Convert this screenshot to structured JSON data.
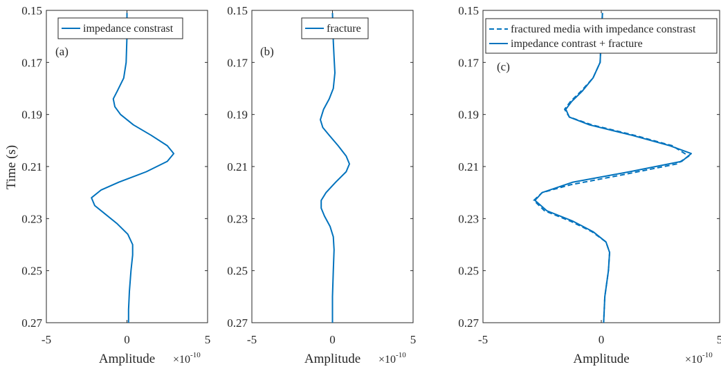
{
  "figure": {
    "ylabel": "Time (s)",
    "xlabel": "Amplitude",
    "line_color": "#0072BD",
    "axis_color": "#262626"
  },
  "chart_data": [
    {
      "type": "line",
      "panel_label": "(a)",
      "xlabel": "Amplitude",
      "ylabel": "Time (s)",
      "x_multiplier": "×10",
      "x_exponent": "-10",
      "xlim": [
        -5e-10,
        5e-10
      ],
      "ylim": [
        0.15,
        0.27
      ],
      "y_reversed": true,
      "xticks": [
        -5e-10,
        0,
        5e-10
      ],
      "xtick_labels": [
        "-5",
        "0",
        "5"
      ],
      "yticks": [
        0.15,
        0.17,
        0.19,
        0.21,
        0.23,
        0.25,
        0.27
      ],
      "ytick_labels": [
        "0.15",
        "0.17",
        "0.19",
        "0.21",
        "0.23",
        "0.25",
        "0.27"
      ],
      "legend": {
        "placement": "top-center"
      },
      "series": [
        {
          "name": "impedance constrast",
          "style": "solid",
          "points": [
            [
              0.151,
              0.0
            ],
            [
              0.16,
              0.0
            ],
            [
              0.17,
              -5e-12
            ],
            [
              0.176,
              -2e-11
            ],
            [
              0.181,
              -6e-11
            ],
            [
              0.184,
              -8.5e-11
            ],
            [
              0.187,
              -7.5e-11
            ],
            [
              0.19,
              -4e-11
            ],
            [
              0.194,
              4e-11
            ],
            [
              0.198,
              1.5e-10
            ],
            [
              0.202,
              2.5e-10
            ],
            [
              0.205,
              2.9e-10
            ],
            [
              0.208,
              2.5e-10
            ],
            [
              0.212,
              1.2e-10
            ],
            [
              0.216,
              -5e-11
            ],
            [
              0.219,
              -1.6e-10
            ],
            [
              0.222,
              -2.2e-10
            ],
            [
              0.225,
              -2e-10
            ],
            [
              0.228,
              -1.4e-10
            ],
            [
              0.232,
              -6e-11
            ],
            [
              0.236,
              5e-12
            ],
            [
              0.24,
              3.5e-11
            ],
            [
              0.244,
              3.5e-11
            ],
            [
              0.25,
              2.5e-11
            ],
            [
              0.258,
              1.5e-11
            ],
            [
              0.265,
              1e-11
            ],
            [
              0.27,
              1e-11
            ]
          ]
        }
      ]
    },
    {
      "type": "line",
      "panel_label": "(b)",
      "xlabel": "Amplitude",
      "x_multiplier": "×10",
      "x_exponent": "-10",
      "xlim": [
        -5e-10,
        5e-10
      ],
      "ylim": [
        0.15,
        0.27
      ],
      "y_reversed": true,
      "xticks": [
        -5e-10,
        0,
        5e-10
      ],
      "xtick_labels": [
        "-5",
        "0",
        "5"
      ],
      "yticks": [
        0.15,
        0.17,
        0.19,
        0.21,
        0.23,
        0.25,
        0.27
      ],
      "ytick_labels": [
        "0.15",
        "0.17",
        "0.19",
        "0.21",
        "0.23",
        "0.25",
        "0.27"
      ],
      "legend": {
        "placement": "top-center"
      },
      "series": [
        {
          "name": "fracture",
          "style": "solid",
          "points": [
            [
              0.151,
              0.0
            ],
            [
              0.162,
              5e-12
            ],
            [
              0.168,
              1e-11
            ],
            [
              0.174,
              1.5e-11
            ],
            [
              0.18,
              5e-12
            ],
            [
              0.184,
              -2e-11
            ],
            [
              0.188,
              -5.5e-11
            ],
            [
              0.192,
              -7.5e-11
            ],
            [
              0.195,
              -6e-11
            ],
            [
              0.198,
              -2e-11
            ],
            [
              0.202,
              3.5e-11
            ],
            [
              0.206,
              8.5e-11
            ],
            [
              0.209,
              1.05e-10
            ],
            [
              0.212,
              8.5e-11
            ],
            [
              0.216,
              2e-11
            ],
            [
              0.22,
              -4e-11
            ],
            [
              0.223,
              -7e-11
            ],
            [
              0.226,
              -7e-11
            ],
            [
              0.229,
              -5e-11
            ],
            [
              0.233,
              -1.5e-11
            ],
            [
              0.237,
              5e-12
            ],
            [
              0.242,
              1e-11
            ],
            [
              0.25,
              5e-12
            ],
            [
              0.26,
              0.0
            ],
            [
              0.27,
              0.0
            ]
          ]
        }
      ]
    },
    {
      "type": "line",
      "panel_label": "(c)",
      "xlabel": "Amplitude",
      "x_multiplier": "×10",
      "x_exponent": "-10",
      "xlim": [
        -5e-10,
        5e-10
      ],
      "ylim": [
        0.15,
        0.27
      ],
      "y_reversed": true,
      "xticks": [
        -5e-10,
        0,
        5e-10
      ],
      "xtick_labels": [
        "-5",
        "0",
        "5"
      ],
      "yticks": [
        0.15,
        0.17,
        0.19,
        0.21,
        0.23,
        0.25,
        0.27
      ],
      "ytick_labels": [
        "0.15",
        "0.17",
        "0.19",
        "0.21",
        "0.23",
        "0.25",
        "0.27"
      ],
      "legend": {
        "placement": "top-right"
      },
      "series": [
        {
          "name": "fractured media with impedance constrast",
          "style": "dashed",
          "points": [
            [
              0.151,
              5e-12
            ],
            [
              0.16,
              0.0
            ],
            [
              0.17,
              -5e-12
            ],
            [
              0.176,
              -3.5e-11
            ],
            [
              0.181,
              -8.5e-11
            ],
            [
              0.185,
              -1.3e-10
            ],
            [
              0.188,
              -1.55e-10
            ],
            [
              0.191,
              -1.35e-10
            ],
            [
              0.194,
              -4e-11
            ],
            [
              0.198,
              1.4e-10
            ],
            [
              0.202,
              3e-10
            ],
            [
              0.206,
              3.7e-10
            ],
            [
              0.209,
              3.2e-10
            ],
            [
              0.213,
              1e-10
            ],
            [
              0.217,
              -1.3e-10
            ],
            [
              0.22,
              -2.5e-10
            ],
            [
              0.223,
              -2.85e-10
            ],
            [
              0.227,
              -2.4e-10
            ],
            [
              0.231,
              -1.3e-10
            ],
            [
              0.235,
              -4e-11
            ],
            [
              0.239,
              2e-11
            ],
            [
              0.243,
              3.5e-11
            ],
            [
              0.25,
              3e-11
            ],
            [
              0.26,
              1.5e-11
            ],
            [
              0.27,
              1e-11
            ]
          ]
        },
        {
          "name": "impedance contrast + fracture",
          "style": "solid",
          "points": [
            [
              0.151,
              5e-12
            ],
            [
              0.16,
              0.0
            ],
            [
              0.17,
              -5e-12
            ],
            [
              0.176,
              -3.5e-11
            ],
            [
              0.181,
              -8e-11
            ],
            [
              0.185,
              -1.25e-10
            ],
            [
              0.188,
              -1.5e-10
            ],
            [
              0.191,
              -1.35e-10
            ],
            [
              0.194,
              -5e-11
            ],
            [
              0.198,
              1.3e-10
            ],
            [
              0.202,
              2.9e-10
            ],
            [
              0.205,
              3.8e-10
            ],
            [
              0.208,
              3.4e-10
            ],
            [
              0.212,
              1.2e-10
            ],
            [
              0.216,
              -1.2e-10
            ],
            [
              0.22,
              -2.5e-10
            ],
            [
              0.223,
              -2.8e-10
            ],
            [
              0.227,
              -2.3e-10
            ],
            [
              0.231,
              -1.2e-10
            ],
            [
              0.235,
              -3.5e-11
            ],
            [
              0.239,
              2e-11
            ],
            [
              0.243,
              3.5e-11
            ],
            [
              0.25,
              3e-11
            ],
            [
              0.26,
              1.5e-11
            ],
            [
              0.27,
              1e-11
            ]
          ]
        }
      ]
    }
  ]
}
